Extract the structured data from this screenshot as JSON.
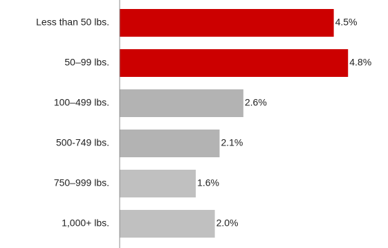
{
  "chart_data": {
    "type": "bar",
    "orientation": "horizontal",
    "categories": [
      "Less than 50 lbs.",
      "50–99 lbs.",
      "100–499 lbs.",
      "500-749 lbs.",
      "750–999 lbs.",
      "1,000+ lbs."
    ],
    "values": [
      4.5,
      4.8,
      2.6,
      2.1,
      1.6,
      2.0
    ],
    "value_labels": [
      "4.5%",
      "4.8%",
      "2.6%",
      "2.1%",
      "1.6%",
      "2.0%"
    ],
    "bar_colors": [
      "#cc0000",
      "#cc0000",
      "#b3b3b3",
      "#b3b3b3",
      "#c0c0c0",
      "#c0c0c0"
    ],
    "xlim": [
      0,
      5.0
    ],
    "grid": false,
    "legend": "none",
    "title": "",
    "xlabel": "",
    "ylabel": ""
  },
  "colors": {
    "axis": "#8c8c8c",
    "text": "#222222",
    "highlight": "#cc0000",
    "muted": "#b3b3b3"
  }
}
